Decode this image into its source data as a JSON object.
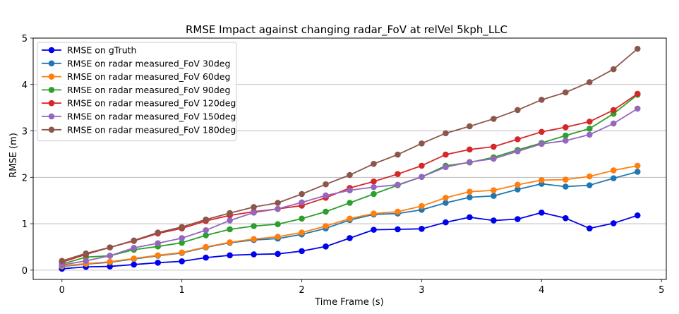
{
  "chart_data": {
    "type": "line",
    "title": "RMSE Impact against changing radar_FoV at relVel 5kph_LLC",
    "xlabel": "Time Frame (s)",
    "ylabel": "RMSE (m)",
    "xlim": [
      -0.24,
      5.04
    ],
    "ylim": [
      -0.2,
      5.0
    ],
    "xticks": [
      0,
      1,
      2,
      3,
      4,
      5
    ],
    "yticks": [
      0,
      1,
      2,
      3,
      4,
      5
    ],
    "grid": "horizontal",
    "legend_position": "top-left",
    "x": [
      0,
      0.2,
      0.4,
      0.6,
      0.8,
      1.0,
      1.2,
      1.4,
      1.6,
      1.8,
      2.0,
      2.2,
      2.4,
      2.6,
      2.8,
      3.0,
      3.2,
      3.4,
      3.6,
      3.8,
      4.0,
      4.2,
      4.4,
      4.6,
      4.8
    ],
    "series": [
      {
        "name": "RMSE on gTruth",
        "color": "#0000ee",
        "values": [
          0.03,
          0.07,
          0.08,
          0.12,
          0.16,
          0.19,
          0.27,
          0.32,
          0.34,
          0.35,
          0.41,
          0.51,
          0.69,
          0.87,
          0.88,
          0.89,
          1.03,
          1.14,
          1.07,
          1.1,
          1.24,
          1.12,
          0.9,
          1.01,
          1.18
        ]
      },
      {
        "name": "RMSE on radar measured_FoV 30deg",
        "color": "#1f77b4",
        "values": [
          0.08,
          0.13,
          0.17,
          0.24,
          0.31,
          0.37,
          0.49,
          0.59,
          0.65,
          0.68,
          0.77,
          0.9,
          1.08,
          1.2,
          1.22,
          1.3,
          1.45,
          1.57,
          1.6,
          1.74,
          1.86,
          1.8,
          1.83,
          1.98,
          2.12
        ]
      },
      {
        "name": "RMSE on radar measured_FoV 60deg",
        "color": "#ff7f0e",
        "values": [
          0.09,
          0.14,
          0.18,
          0.25,
          0.32,
          0.38,
          0.5,
          0.6,
          0.67,
          0.72,
          0.81,
          0.95,
          1.11,
          1.22,
          1.26,
          1.38,
          1.56,
          1.69,
          1.72,
          1.84,
          1.94,
          1.95,
          2.02,
          2.15,
          2.25
        ]
      },
      {
        "name": "RMSE on radar measured_FoV 90deg",
        "color": "#2ca02c",
        "values": [
          0.13,
          0.28,
          0.31,
          0.44,
          0.51,
          0.59,
          0.75,
          0.88,
          0.95,
          0.99,
          1.11,
          1.26,
          1.45,
          1.64,
          1.83,
          2.01,
          2.25,
          2.32,
          2.43,
          2.59,
          2.74,
          2.9,
          3.05,
          3.37,
          3.78
        ]
      },
      {
        "name": "RMSE on radar measured_FoV 120deg",
        "color": "#d62728",
        "values": [
          0.17,
          0.34,
          0.49,
          0.63,
          0.79,
          0.9,
          1.06,
          1.18,
          1.26,
          1.32,
          1.39,
          1.56,
          1.77,
          1.91,
          2.07,
          2.25,
          2.49,
          2.6,
          2.66,
          2.82,
          2.98,
          3.08,
          3.2,
          3.45,
          3.8
        ]
      },
      {
        "name": "RMSE on radar measured_FoV 150deg",
        "color": "#9467bd",
        "values": [
          0.11,
          0.2,
          0.31,
          0.48,
          0.58,
          0.69,
          0.86,
          1.07,
          1.24,
          1.32,
          1.46,
          1.61,
          1.72,
          1.79,
          1.84,
          2.01,
          2.22,
          2.33,
          2.4,
          2.56,
          2.72,
          2.79,
          2.92,
          3.16,
          3.48
        ]
      },
      {
        "name": "RMSE on radar measured_FoV 180deg",
        "color": "#8c564b",
        "values": [
          0.2,
          0.36,
          0.49,
          0.64,
          0.81,
          0.93,
          1.09,
          1.23,
          1.36,
          1.45,
          1.64,
          1.85,
          2.05,
          2.29,
          2.49,
          2.73,
          2.95,
          3.1,
          3.26,
          3.45,
          3.67,
          3.83,
          4.05,
          4.33,
          4.77
        ]
      }
    ]
  }
}
